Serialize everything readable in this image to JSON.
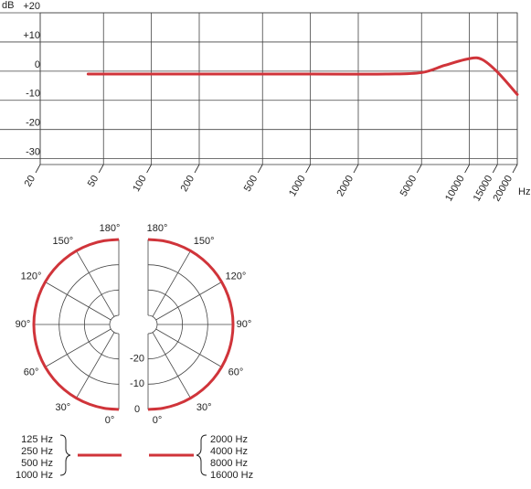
{
  "chart_data": [
    {
      "type": "line",
      "y_label": "dB",
      "x_label": "Hz",
      "log_x": true,
      "grid": true,
      "xlim": [
        20,
        20000
      ],
      "ylim": [
        -32,
        20
      ],
      "xticks": [
        20,
        50,
        100,
        200,
        500,
        1000,
        2000,
        5000,
        10000,
        15000,
        20000
      ],
      "yticks": [
        {
          "value": 20,
          "label": "+20"
        },
        {
          "value": 10,
          "label": "+10"
        },
        0,
        -10,
        -20,
        -30
      ],
      "series": [
        {
          "color": "#d0343a",
          "x": [
            40,
            100,
            1000,
            3000,
            5000,
            7000,
            10000,
            12000,
            15000,
            20000
          ],
          "values": [
            -1,
            -1,
            -1,
            -1,
            -0.5,
            2,
            4.3,
            4,
            -0.3,
            -8
          ]
        }
      ]
    },
    {
      "type": "polar",
      "rlim": [
        -30,
        0
      ],
      "rticks": [
        -20,
        -10,
        0
      ],
      "thetaticks": [
        {
          "value": 180,
          "label": "180°"
        },
        {
          "value": 150,
          "label": "150°"
        },
        {
          "value": 120,
          "label": "120°"
        },
        {
          "value": 90,
          "label": "90°"
        },
        {
          "value": 60,
          "label": "60°"
        },
        {
          "value": 30,
          "label": "30°"
        },
        {
          "value": 0,
          "label": "0°"
        }
      ],
      "series": [
        {
          "name": [
            "125 Hz",
            "250 Hz",
            "500 Hz",
            "1000 Hz"
          ],
          "side": "left",
          "color": "#d0343a",
          "theta": [
            0,
            10,
            20,
            30,
            40,
            50,
            60,
            70,
            80,
            90,
            100,
            110,
            120,
            130,
            140,
            150,
            160,
            170,
            180
          ],
          "values": [
            0,
            0,
            0,
            0,
            0,
            0,
            0,
            0,
            0,
            0,
            0,
            0,
            0,
            0,
            0,
            0,
            0,
            0,
            0
          ]
        },
        {
          "name": [
            "2000 Hz",
            "4000 Hz",
            "8000 Hz",
            "16000 Hz"
          ],
          "side": "right",
          "color": "#d0343a",
          "theta": [
            0,
            10,
            20,
            30,
            40,
            50,
            60,
            70,
            80,
            90,
            100,
            110,
            120,
            130,
            140,
            150,
            160,
            170,
            180
          ],
          "values": [
            0,
            0,
            0,
            0,
            0,
            0,
            0,
            0,
            0,
            0,
            0,
            0,
            0,
            0,
            0,
            0,
            0,
            0,
            0
          ]
        }
      ]
    }
  ]
}
